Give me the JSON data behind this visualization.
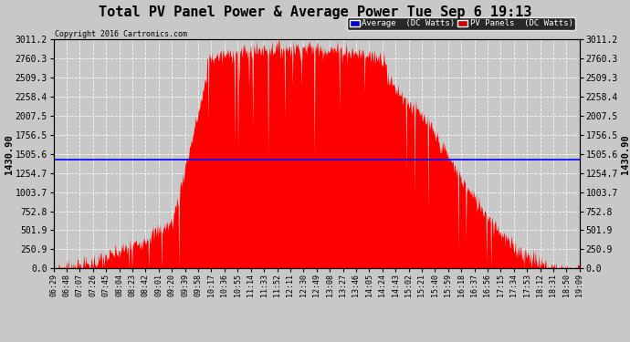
{
  "title": "Total PV Panel Power & Average Power Tue Sep 6 19:13",
  "copyright_text": "Copyright 2016 Cartronics.com",
  "average_value": 1430.9,
  "y_max": 3011.2,
  "y_ticks": [
    0.0,
    250.9,
    501.9,
    752.8,
    1003.7,
    1254.7,
    1505.6,
    1756.5,
    2007.5,
    2258.4,
    2509.3,
    2760.3,
    3011.2
  ],
  "background_color": "#c8c8c8",
  "plot_bg_color": "#c8c8c8",
  "fill_color": "#ff0000",
  "avg_line_color": "#0000ff",
  "legend_avg_color": "#0000cc",
  "legend_pv_color": "#cc0000",
  "x_labels": [
    "06:29",
    "06:48",
    "07:07",
    "07:26",
    "07:45",
    "08:04",
    "08:23",
    "08:42",
    "09:01",
    "09:20",
    "09:39",
    "09:58",
    "10:17",
    "10:36",
    "10:55",
    "11:14",
    "11:33",
    "11:52",
    "12:11",
    "12:30",
    "12:49",
    "13:08",
    "13:27",
    "13:46",
    "14:05",
    "14:24",
    "14:43",
    "15:02",
    "15:21",
    "15:40",
    "15:59",
    "16:18",
    "16:37",
    "16:56",
    "17:15",
    "17:34",
    "17:53",
    "18:12",
    "18:31",
    "18:50",
    "19:09"
  ]
}
